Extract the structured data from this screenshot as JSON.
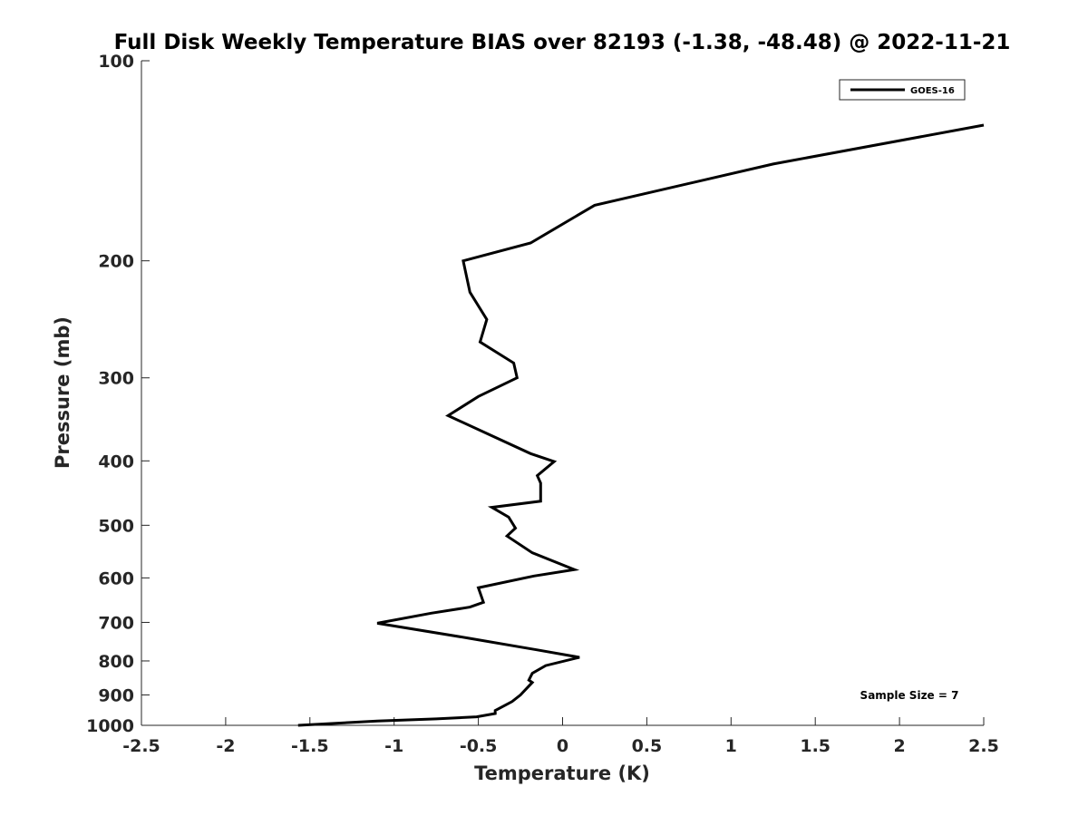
{
  "chart_data": {
    "type": "line",
    "title": "Full Disk Weekly Temperature BIAS over 82193 (-1.38, -48.48) @ 2022-11-21",
    "xlabel": "Temperature (K)",
    "ylabel": "Pressure (mb)",
    "xlim": [
      -2.5,
      2.5
    ],
    "ylim": [
      100,
      1000
    ],
    "yscale": "log",
    "yreversed": true,
    "xticks": [
      -2.5,
      -2,
      -1.5,
      -1,
      -0.5,
      0,
      0.5,
      1,
      1.5,
      2,
      2.5
    ],
    "xtick_labels": [
      "-2.5",
      "-2",
      "-1.5",
      "-1",
      "-0.5",
      "0",
      "0.5",
      "1",
      "1.5",
      "2",
      "2.5"
    ],
    "yticks": [
      100,
      200,
      300,
      400,
      500,
      600,
      700,
      800,
      900,
      1000
    ],
    "ytick_labels": [
      "100",
      "200",
      "300",
      "400",
      "500",
      "600",
      "700",
      "800",
      "900",
      "1000"
    ],
    "legend": {
      "position": "top-right",
      "entries": [
        "GOES-16"
      ]
    },
    "annotation": "Sample Size = 7",
    "series": [
      {
        "name": "GOES-16",
        "color": "#000000",
        "points": [
          [
            2.5,
            125
          ],
          [
            1.25,
            143
          ],
          [
            0.19,
            165
          ],
          [
            -0.19,
            188
          ],
          [
            -0.59,
            200
          ],
          [
            -0.55,
            223
          ],
          [
            -0.45,
            245
          ],
          [
            -0.49,
            265
          ],
          [
            -0.29,
            285
          ],
          [
            -0.27,
            300
          ],
          [
            -0.5,
            320
          ],
          [
            -0.68,
            342
          ],
          [
            -0.19,
            390
          ],
          [
            -0.05,
            401
          ],
          [
            -0.15,
            421
          ],
          [
            -0.13,
            432
          ],
          [
            -0.13,
            460
          ],
          [
            -0.42,
            470
          ],
          [
            -0.32,
            486
          ],
          [
            -0.28,
            505
          ],
          [
            -0.33,
            519
          ],
          [
            -0.18,
            550
          ],
          [
            0.07,
            583
          ],
          [
            -0.17,
            596
          ],
          [
            -0.5,
            621
          ],
          [
            -0.47,
            653
          ],
          [
            -0.55,
            664
          ],
          [
            -0.78,
            678
          ],
          [
            -1.1,
            702
          ],
          [
            -0.55,
            740
          ],
          [
            -0.15,
            770
          ],
          [
            0.1,
            790
          ],
          [
            -0.1,
            813
          ],
          [
            -0.18,
            835
          ],
          [
            -0.2,
            855
          ],
          [
            -0.18,
            862
          ],
          [
            -0.25,
            900
          ],
          [
            -0.3,
            921
          ],
          [
            -0.4,
            950
          ],
          [
            -0.4,
            960
          ],
          [
            -0.51,
            971
          ],
          [
            -0.75,
            978
          ],
          [
            -1.1,
            985
          ],
          [
            -1.57,
            1000
          ]
        ]
      }
    ]
  }
}
